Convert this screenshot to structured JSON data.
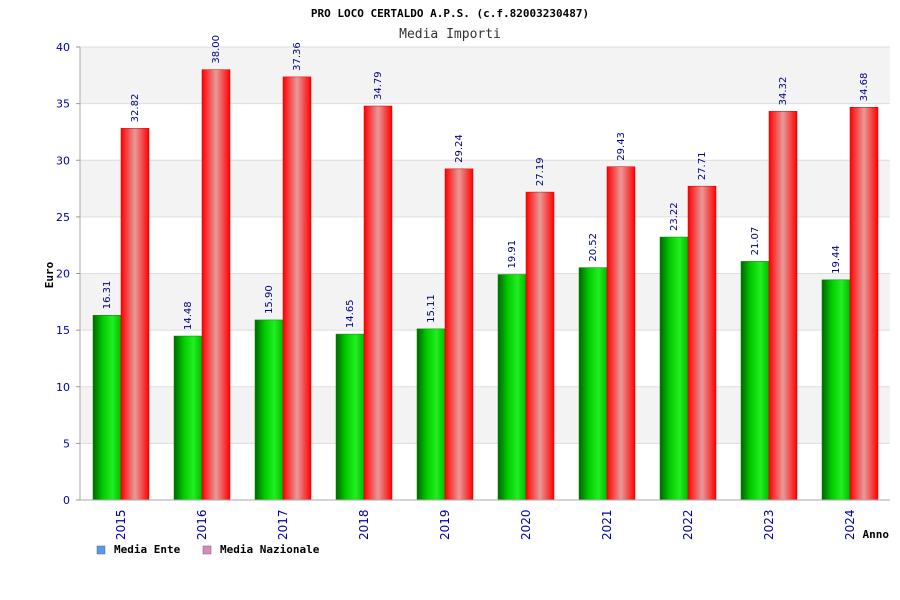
{
  "chart_data": {
    "type": "bar",
    "title": "PRO LOCO CERTALDO A.P.S. (c.f.82003230487)",
    "subtitle": "Media Importi",
    "xlabel": "Anno",
    "ylabel": "Euro",
    "ylim": [
      0,
      40
    ],
    "yticks": [
      0,
      5,
      10,
      15,
      20,
      25,
      30,
      35,
      40
    ],
    "categories": [
      "2015",
      "2016",
      "2017",
      "2018",
      "2019",
      "2020",
      "2021",
      "2022",
      "2023",
      "2024"
    ],
    "series": [
      {
        "name": "Media Ente",
        "color": "#00aa00",
        "legend_color": "#5599ee",
        "values": [
          16.31,
          14.48,
          15.9,
          14.65,
          15.11,
          19.91,
          20.52,
          23.22,
          21.07,
          19.44
        ],
        "labels": [
          "16.31",
          "14.48",
          "15.90",
          "14.65",
          "15.11",
          "19.91",
          "20.52",
          "23.22",
          "21.07",
          "19.44"
        ]
      },
      {
        "name": "Media Nazionale",
        "color": "#ee0000",
        "legend_color": "#dd88bb",
        "values": [
          32.82,
          38.0,
          37.36,
          34.79,
          29.24,
          27.19,
          29.43,
          27.71,
          34.32,
          34.68
        ],
        "labels": [
          "32.82",
          "38.00",
          "37.36",
          "34.79",
          "29.24",
          "27.19",
          "29.43",
          "27.71",
          "34.32",
          "34.68"
        ]
      }
    ],
    "grid": true,
    "legend": "bottom-left"
  }
}
